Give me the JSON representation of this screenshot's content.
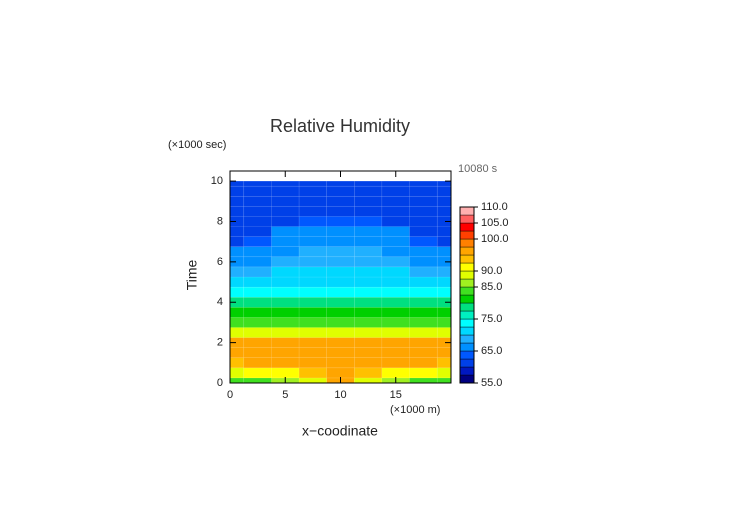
{
  "chart_data": {
    "type": "contour",
    "title": "Relative Humidity",
    "y_unit": "(×1000 sec)",
    "x_unit": "(×1000 m)",
    "time_label": "10080 s",
    "ylabel": "Time",
    "xlabel": "x−coodinate",
    "xlim": [
      0,
      20
    ],
    "ylim": [
      0,
      10.5
    ],
    "xticks": [
      0,
      5,
      10,
      15
    ],
    "yticks": [
      0,
      2,
      4,
      6,
      8,
      10
    ],
    "x": [
      0,
      2.5,
      5,
      7.5,
      10,
      12.5,
      15,
      17.5,
      20
    ],
    "y": [
      0,
      0.5,
      1,
      1.5,
      2,
      2.5,
      3,
      3.5,
      4,
      4.5,
      5,
      5.5,
      6,
      6.5,
      7,
      7.5,
      8,
      8.5,
      9,
      9.5,
      10
    ],
    "z": [
      [
        83,
        84,
        86,
        89,
        95,
        89,
        86,
        84,
        83
      ],
      [
        89,
        90,
        91,
        93,
        96,
        93,
        91,
        90,
        89
      ],
      [
        94,
        95,
        95,
        96,
        96,
        96,
        95,
        95,
        94
      ],
      [
        96,
        96,
        96,
        96,
        96,
        96,
        96,
        96,
        96
      ],
      [
        96,
        96,
        96,
        96,
        96,
        96,
        96,
        96,
        96
      ],
      [
        89,
        89,
        89,
        89,
        89,
        89,
        89,
        89,
        89
      ],
      [
        84,
        84,
        84,
        84,
        84,
        84,
        84,
        84,
        84
      ],
      [
        81,
        81,
        81,
        81,
        81,
        81,
        81,
        81,
        81
      ],
      [
        78,
        78,
        78,
        78,
        78,
        78,
        78,
        78,
        78
      ],
      [
        74,
        74,
        74,
        74,
        74,
        74,
        74,
        74,
        74
      ],
      [
        72,
        72,
        72,
        72,
        72,
        72,
        72,
        72,
        72
      ],
      [
        69,
        69,
        70.5,
        71,
        71,
        71,
        70.5,
        69,
        69
      ],
      [
        67,
        67,
        68,
        68,
        68,
        68,
        68,
        67,
        67
      ],
      [
        65,
        66,
        67,
        68,
        68,
        68,
        67,
        66,
        65
      ],
      [
        62,
        63,
        66,
        67,
        67,
        67,
        66,
        63,
        62
      ],
      [
        62,
        62,
        65.5,
        66,
        66,
        66,
        65.5,
        62,
        62
      ],
      [
        62,
        62,
        62,
        63,
        63,
        63,
        62,
        62,
        62
      ],
      [
        61,
        61,
        61,
        61,
        61,
        61,
        61,
        61,
        61
      ],
      [
        61,
        61,
        61,
        61,
        61,
        61,
        61,
        61,
        61
      ],
      [
        61,
        61,
        61,
        61,
        61,
        61,
        61,
        61,
        61
      ],
      [
        61,
        61,
        61,
        61,
        61,
        61,
        61,
        61,
        61
      ]
    ],
    "levels": [
      55,
      57.5,
      60,
      62.5,
      65,
      67.5,
      70,
      72.5,
      75,
      77.5,
      80,
      82.5,
      85,
      87.5,
      90,
      92.5,
      95,
      97.5,
      100,
      102.5,
      105,
      107.5,
      110
    ],
    "colors": [
      "#000080",
      "#0018c0",
      "#0040e8",
      "#0058ff",
      "#0090ff",
      "#20b0ff",
      "#00d8ff",
      "#00ffff",
      "#00f0c0",
      "#00e080",
      "#00d000",
      "#40e020",
      "#a0f020",
      "#e0ff00",
      "#ffff00",
      "#ffc000",
      "#ffa500",
      "#ff8000",
      "#ff4000",
      "#ff0000",
      "#ff6060",
      "#ffb0b0"
    ],
    "colorbar_ticks": [
      {
        "value": 55,
        "label": "55.0"
      },
      {
        "value": 65,
        "label": "65.0"
      },
      {
        "value": 75,
        "label": "75.0"
      },
      {
        "value": 85,
        "label": "85.0"
      },
      {
        "value": 90,
        "label": "90.0"
      },
      {
        "value": 100,
        "label": "100.0"
      },
      {
        "value": 105,
        "label": "105.0"
      },
      {
        "value": 110,
        "label": "110.0"
      }
    ]
  }
}
